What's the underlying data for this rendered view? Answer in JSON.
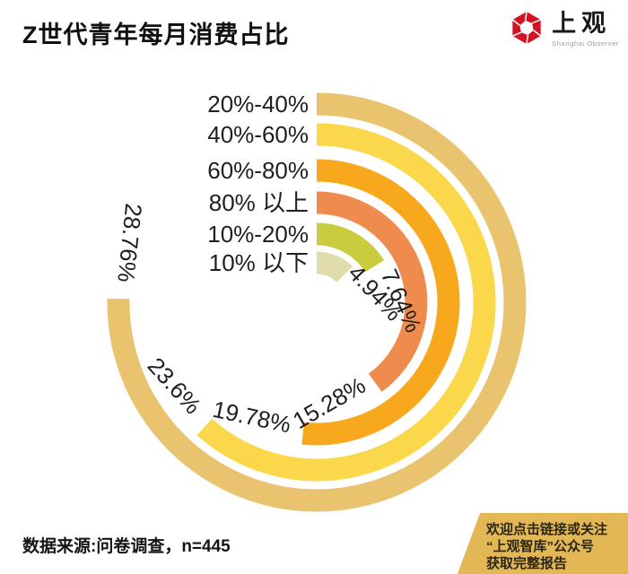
{
  "header": {
    "title": "Z世代青年每月消费占比"
  },
  "logo": {
    "name": "上观",
    "subtitle": "Shanghai Observer",
    "icon_color": "#d41224"
  },
  "chart_data": {
    "type": "bar",
    "variant": "radial-bar",
    "title": "Z世代青年每月消费占比",
    "unit": "%",
    "categories": [
      "20%-40%",
      "40%-60%",
      "60%-80%",
      "80% 以上",
      "10%-20%",
      "10% 以下"
    ],
    "values": [
      28.76,
      23.6,
      19.78,
      15.28,
      7.64,
      4.94
    ],
    "value_labels": [
      "28.76%",
      "23.6%",
      "19.78%",
      "15.28%",
      "7.64%",
      "4.94%"
    ],
    "colors": [
      "#e9c36d",
      "#fbd84b",
      "#f8a81d",
      "#ef8b4c",
      "#c8cc3e",
      "#e1dcab"
    ],
    "legend_position": "left-of-arc-start",
    "layout": {
      "center": [
        353,
        337
      ],
      "radii": [
        221,
        187,
        147,
        111,
        76,
        44
      ],
      "thickness": 25,
      "start_deg": 0,
      "sweeps_deg": [
        271,
        222,
        186,
        144,
        58,
        45
      ],
      "label_gap_deg": [
        5,
        6,
        6,
        6,
        8,
        2
      ],
      "category_label_x": 344
    }
  },
  "footer": {
    "source": "数据来源:问卷调查，n=445"
  },
  "cta_box": {
    "bg": "#e3b854",
    "lines": [
      "欢迎点击链接或关注",
      "“上观智库”公众号",
      "获取完整报告"
    ]
  }
}
